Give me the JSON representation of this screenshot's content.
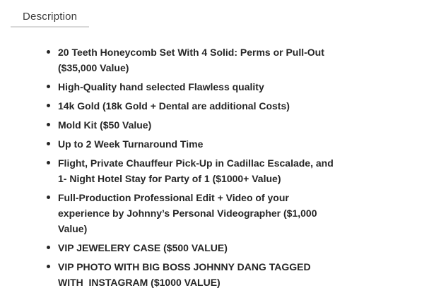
{
  "tab": {
    "label": "Description"
  },
  "colors": {
    "item_text": "#262626",
    "tab_text": "#3d3d3d",
    "tab_underline": "#d9d9d9",
    "background": "#ffffff"
  },
  "description_list": {
    "items": [
      {
        "text": "20 Teeth Honeycomb Set With 4 Solid: Perms or Pull-Out\n($35,000 Value)"
      },
      {
        "text": "High-Quality hand selected Flawless quality"
      },
      {
        "text": "14k Gold (18k Gold + Dental are additional Costs)"
      },
      {
        "text": "Mold Kit ($50 Value)"
      },
      {
        "text": "Up to 2 Week Turnaround Time"
      },
      {
        "text": "Flight, Private Chauffeur Pick-Up in Cadillac Escalade, and\n1- Night Hotel Stay for Party of 1 ($1000+ Value)"
      },
      {
        "text": "Full-Production Professional Edit + Video of your\nexperience by Johnny’s Personal Videographer ($1,000\nValue)"
      },
      {
        "text": "VIP JEWELERY CASE ($500 VALUE)"
      },
      {
        "text": "VIP PHOTO WITH BIG BOSS JOHNNY DANG TAGGED\nWITH  INSTAGRAM ($1000 VALUE)"
      }
    ]
  }
}
